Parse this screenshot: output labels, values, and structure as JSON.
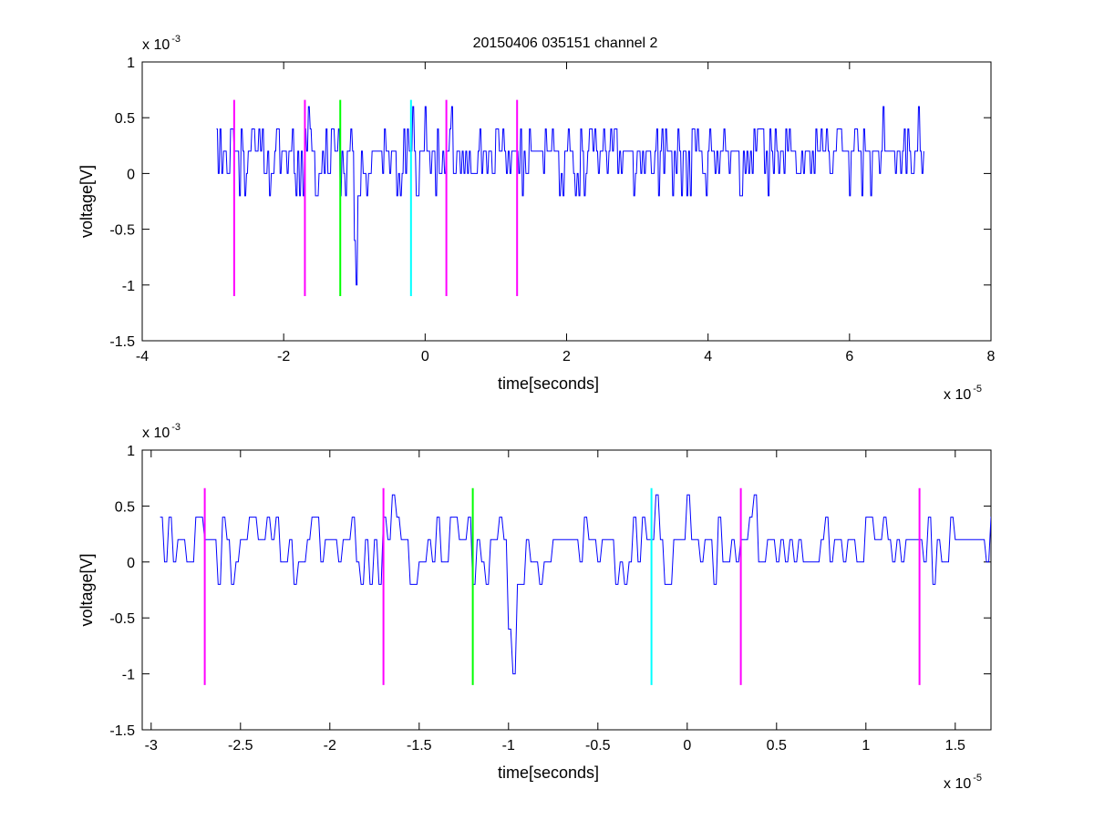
{
  "figure": {
    "title": "20150406 035151 channel 2"
  },
  "chart_data": [
    {
      "type": "line",
      "title": "20150406 035151 channel 2",
      "xlabel": "time[seconds]",
      "ylabel": "voltage[V]",
      "x_exponent_label": "x 10",
      "x_exponent": "-5",
      "y_exponent_label": "x 10",
      "y_exponent": "-3",
      "xlim": [
        -4,
        8
      ],
      "ylim": [
        -1.5,
        1
      ],
      "xticks": [
        -4,
        -2,
        0,
        2,
        4,
        6,
        8
      ],
      "xtick_labels": [
        "-4",
        "-2",
        "0",
        "2",
        "4",
        "6",
        "8"
      ],
      "yticks": [
        -1.5,
        -1,
        -0.5,
        0,
        0.5,
        1
      ],
      "ytick_labels": [
        "-1.5",
        "-1",
        "-0.5",
        "0",
        "0.5",
        "1"
      ],
      "grid": false,
      "signal": {
        "color": "#0000ff",
        "x_start": -2.95,
        "x_end": 7.05,
        "spike_x": -0.97,
        "spike_y": -1.0,
        "levels": [
          -0.2,
          0,
          0.2,
          0.4,
          0.6
        ]
      },
      "markers": [
        {
          "x": -2.7,
          "color": "#ff00ff",
          "y_top": 0.66,
          "y_bottom": -1.1
        },
        {
          "x": -1.7,
          "color": "#ff00ff",
          "y_top": 0.66,
          "y_bottom": -1.1
        },
        {
          "x": -1.2,
          "color": "#00ff00",
          "y_top": 0.66,
          "y_bottom": -1.1
        },
        {
          "x": -0.2,
          "color": "#00ffff",
          "y_top": 0.66,
          "y_bottom": -1.1
        },
        {
          "x": 0.3,
          "color": "#ff00ff",
          "y_top": 0.66,
          "y_bottom": -1.1
        },
        {
          "x": 1.3,
          "color": "#ff00ff",
          "y_top": 0.66,
          "y_bottom": -1.1
        }
      ]
    },
    {
      "type": "line",
      "title": "",
      "xlabel": "time[seconds]",
      "ylabel": "voltage[V]",
      "x_exponent_label": "x 10",
      "x_exponent": "-5",
      "y_exponent_label": "x 10",
      "y_exponent": "-3",
      "xlim": [
        -3.05,
        1.7
      ],
      "ylim": [
        -1.5,
        1
      ],
      "xticks": [
        -3,
        -2.5,
        -2,
        -1.5,
        -1,
        -0.5,
        0,
        0.5,
        1,
        1.5
      ],
      "xtick_labels": [
        "-3",
        "-2.5",
        "-2",
        "-1.5",
        "-1",
        "-0.5",
        "0",
        "0.5",
        "1",
        "1.5"
      ],
      "yticks": [
        -1.5,
        -1,
        -0.5,
        0,
        0.5,
        1
      ],
      "ytick_labels": [
        "-1.5",
        "-1",
        "-0.5",
        "0",
        "0.5",
        "1"
      ],
      "grid": false,
      "signal": {
        "color": "#0000ff",
        "x_start": -2.95,
        "x_end": 1.7,
        "spike_x": -0.97,
        "spike_y": -1.0,
        "levels": [
          -0.2,
          0,
          0.2,
          0.4
        ]
      },
      "markers": [
        {
          "x": -2.7,
          "color": "#ff00ff",
          "y_top": 0.66,
          "y_bottom": -1.1
        },
        {
          "x": -1.7,
          "color": "#ff00ff",
          "y_top": 0.66,
          "y_bottom": -1.1
        },
        {
          "x": -1.2,
          "color": "#00ff00",
          "y_top": 0.66,
          "y_bottom": -1.1
        },
        {
          "x": -0.2,
          "color": "#00ffff",
          "y_top": 0.66,
          "y_bottom": -1.1
        },
        {
          "x": 0.3,
          "color": "#ff00ff",
          "y_top": 0.66,
          "y_bottom": -1.1
        },
        {
          "x": 1.3,
          "color": "#ff00ff",
          "y_top": 0.66,
          "y_bottom": -1.1
        }
      ]
    }
  ]
}
